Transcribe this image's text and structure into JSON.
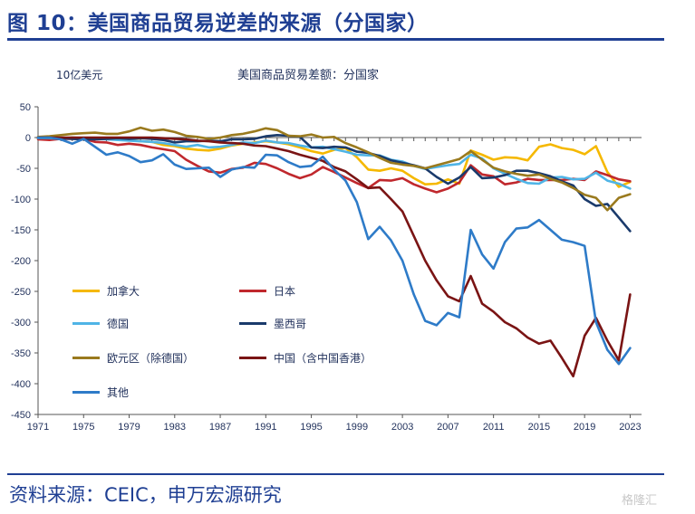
{
  "figure_title": "图 10：美国商品贸易逆差的来源（分国家）",
  "source_text": "资料来源：CEIC，申万宏源研究",
  "watermark": "格隆汇",
  "chart_data": {
    "type": "line",
    "title": "美国商品贸易差额：分国家",
    "unit": "10亿美元",
    "ylim": [
      -450,
      50
    ],
    "yticks": [
      50,
      0,
      -50,
      -100,
      -150,
      -200,
      -250,
      -300,
      -350,
      -400,
      -450
    ],
    "xlim": [
      1971,
      2024
    ],
    "xticks": [
      1971,
      1975,
      1979,
      1983,
      1987,
      1991,
      1995,
      1999,
      2003,
      2007,
      2011,
      2015,
      2019,
      2023
    ],
    "grid": false,
    "legend": "lower-left, inside",
    "x": [
      1971,
      1972,
      1973,
      1974,
      1975,
      1976,
      1977,
      1978,
      1979,
      1980,
      1981,
      1982,
      1983,
      1984,
      1985,
      1986,
      1987,
      1988,
      1989,
      1990,
      1991,
      1992,
      1993,
      1994,
      1995,
      1996,
      1997,
      1998,
      1999,
      2000,
      2001,
      2002,
      2003,
      2004,
      2005,
      2006,
      2007,
      2008,
      2009,
      2010,
      2011,
      2012,
      2013,
      2014,
      2015,
      2016,
      2017,
      2018,
      2019,
      2020,
      2021,
      2022,
      2023
    ],
    "series": [
      {
        "name": "加拿大",
        "color": "#f5b800",
        "values": [
          -2,
          -2,
          -2,
          0,
          -1,
          -1,
          -2,
          -2,
          -4,
          -6,
          -7,
          -12,
          -14,
          -18,
          -20,
          -21,
          -18,
          -13,
          -10,
          -8,
          -6,
          -8,
          -11,
          -16,
          -22,
          -26,
          -20,
          -17,
          -32,
          -52,
          -54,
          -50,
          -54,
          -66,
          -76,
          -75,
          -68,
          -75,
          -21,
          -28,
          -36,
          -32,
          -33,
          -37,
          -15,
          -11,
          -17,
          -20,
          -27,
          -14,
          -56,
          -80,
          -72
        ]
      },
      {
        "name": "日本",
        "color": "#c0282d",
        "values": [
          -3,
          -4,
          -2,
          -2,
          -2,
          -7,
          -8,
          -12,
          -10,
          -12,
          -16,
          -19,
          -22,
          -36,
          -46,
          -55,
          -57,
          -51,
          -49,
          -41,
          -43,
          -50,
          -59,
          -66,
          -60,
          -48,
          -56,
          -65,
          -74,
          -82,
          -69,
          -70,
          -66,
          -76,
          -83,
          -89,
          -83,
          -73,
          -45,
          -60,
          -63,
          -76,
          -73,
          -67,
          -69,
          -69,
          -69,
          -67,
          -69,
          -55,
          -61,
          -68,
          -71
        ]
      },
      {
        "name": "德国",
        "color": "#4fb4e6",
        "values": [
          -1,
          -1,
          -2,
          0,
          -1,
          -2,
          -3,
          -4,
          -5,
          -6,
          -7,
          -9,
          -12,
          -15,
          -12,
          -16,
          -15,
          -12,
          -8,
          -9,
          -5,
          -8,
          -9,
          -13,
          -16,
          -15,
          -19,
          -23,
          -28,
          -29,
          -29,
          -36,
          -39,
          -46,
          -51,
          -48,
          -45,
          -43,
          -28,
          -34,
          -50,
          -59,
          -67,
          -74,
          -75,
          -65,
          -64,
          -68,
          -67,
          -57,
          -70,
          -75,
          -83
        ]
      },
      {
        "name": "墨西哥",
        "color": "#1a3a6b",
        "values": [
          0,
          0,
          -1,
          -2,
          -3,
          -3,
          -2,
          -1,
          -2,
          -1,
          -2,
          -4,
          -8,
          -6,
          -6,
          -5,
          -6,
          -3,
          -3,
          -2,
          2,
          4,
          3,
          1,
          -16,
          -17,
          -15,
          -16,
          -23,
          -25,
          -30,
          -37,
          -41,
          -45,
          -50,
          -64,
          -75,
          -65,
          -48,
          -66,
          -65,
          -61,
          -54,
          -54,
          -58,
          -63,
          -71,
          -78,
          -100,
          -111,
          -108,
          -130,
          -152
        ]
      },
      {
        "name": "欧元区（除德国）",
        "color": "#9a7a1e",
        "values": [
          1,
          2,
          4,
          6,
          7,
          8,
          6,
          6,
          10,
          16,
          11,
          13,
          9,
          3,
          1,
          -2,
          0,
          4,
          6,
          10,
          15,
          12,
          3,
          2,
          5,
          0,
          1,
          -9,
          -16,
          -24,
          -33,
          -41,
          -44,
          -46,
          -50,
          -45,
          -40,
          -35,
          -22,
          -36,
          -49,
          -55,
          -59,
          -62,
          -60,
          -67,
          -73,
          -82,
          -93,
          -98,
          -118,
          -98,
          -92
        ]
      },
      {
        "name": "中国（含中国香港）",
        "color": "#7a1414",
        "values": [
          0,
          0,
          0,
          0,
          0,
          0,
          0,
          0,
          0,
          0,
          0,
          -1,
          -2,
          -3,
          -5,
          -6,
          -8,
          -9,
          -10,
          -13,
          -14,
          -18,
          -22,
          -28,
          -33,
          -38,
          -48,
          -55,
          -68,
          -82,
          -81,
          -100,
          -120,
          -160,
          -200,
          -232,
          -258,
          -266,
          -225,
          -270,
          -283,
          -300,
          -310,
          -325,
          -335,
          -330,
          -358,
          -388,
          -322,
          -293,
          -330,
          -362,
          -255
        ]
      },
      {
        "name": "其他",
        "color": "#2e7bc8",
        "values": [
          0,
          0,
          -3,
          -10,
          -2,
          -15,
          -28,
          -24,
          -30,
          -40,
          -37,
          -27,
          -44,
          -51,
          -50,
          -49,
          -64,
          -52,
          -48,
          -49,
          -28,
          -29,
          -40,
          -48,
          -46,
          -31,
          -52,
          -70,
          -105,
          -165,
          -145,
          -167,
          -200,
          -255,
          -298,
          -305,
          -285,
          -292,
          -150,
          -190,
          -213,
          -170,
          -148,
          -146,
          -134,
          -150,
          -166,
          -170,
          -176,
          -300,
          -345,
          -368,
          -342
        ]
      }
    ]
  }
}
